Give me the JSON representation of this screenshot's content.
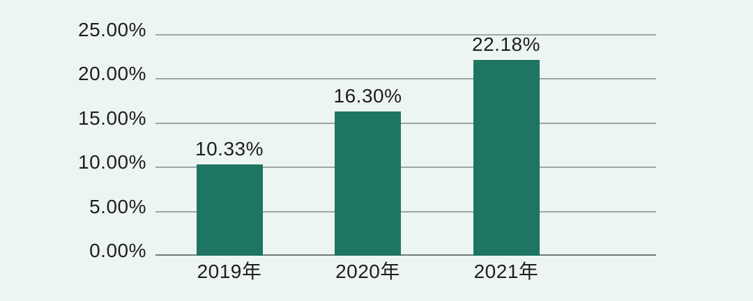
{
  "chart_data": {
    "type": "bar",
    "title": "",
    "xlabel": "",
    "ylabel": "",
    "categories": [
      "2019年",
      "2020年",
      "2021年"
    ],
    "values": [
      10.33,
      16.3,
      22.18
    ],
    "value_labels": [
      "10.33%",
      "16.30%",
      "22.18%"
    ],
    "ytick_values": [
      25,
      20,
      15,
      10,
      5,
      0
    ],
    "ytick_labels": [
      "25.00%",
      "20.00%",
      "15.00%",
      "10.00%",
      "5.00%",
      "0.00%"
    ],
    "ylim": [
      0,
      25
    ],
    "grid": "horizontal",
    "legend": "none",
    "colors": {
      "bar": "#1e7562",
      "background": "#edf5f2",
      "gridline": "#9ca7a4",
      "axis_line": "#6f7b77",
      "text": "#1d1f1f"
    }
  }
}
